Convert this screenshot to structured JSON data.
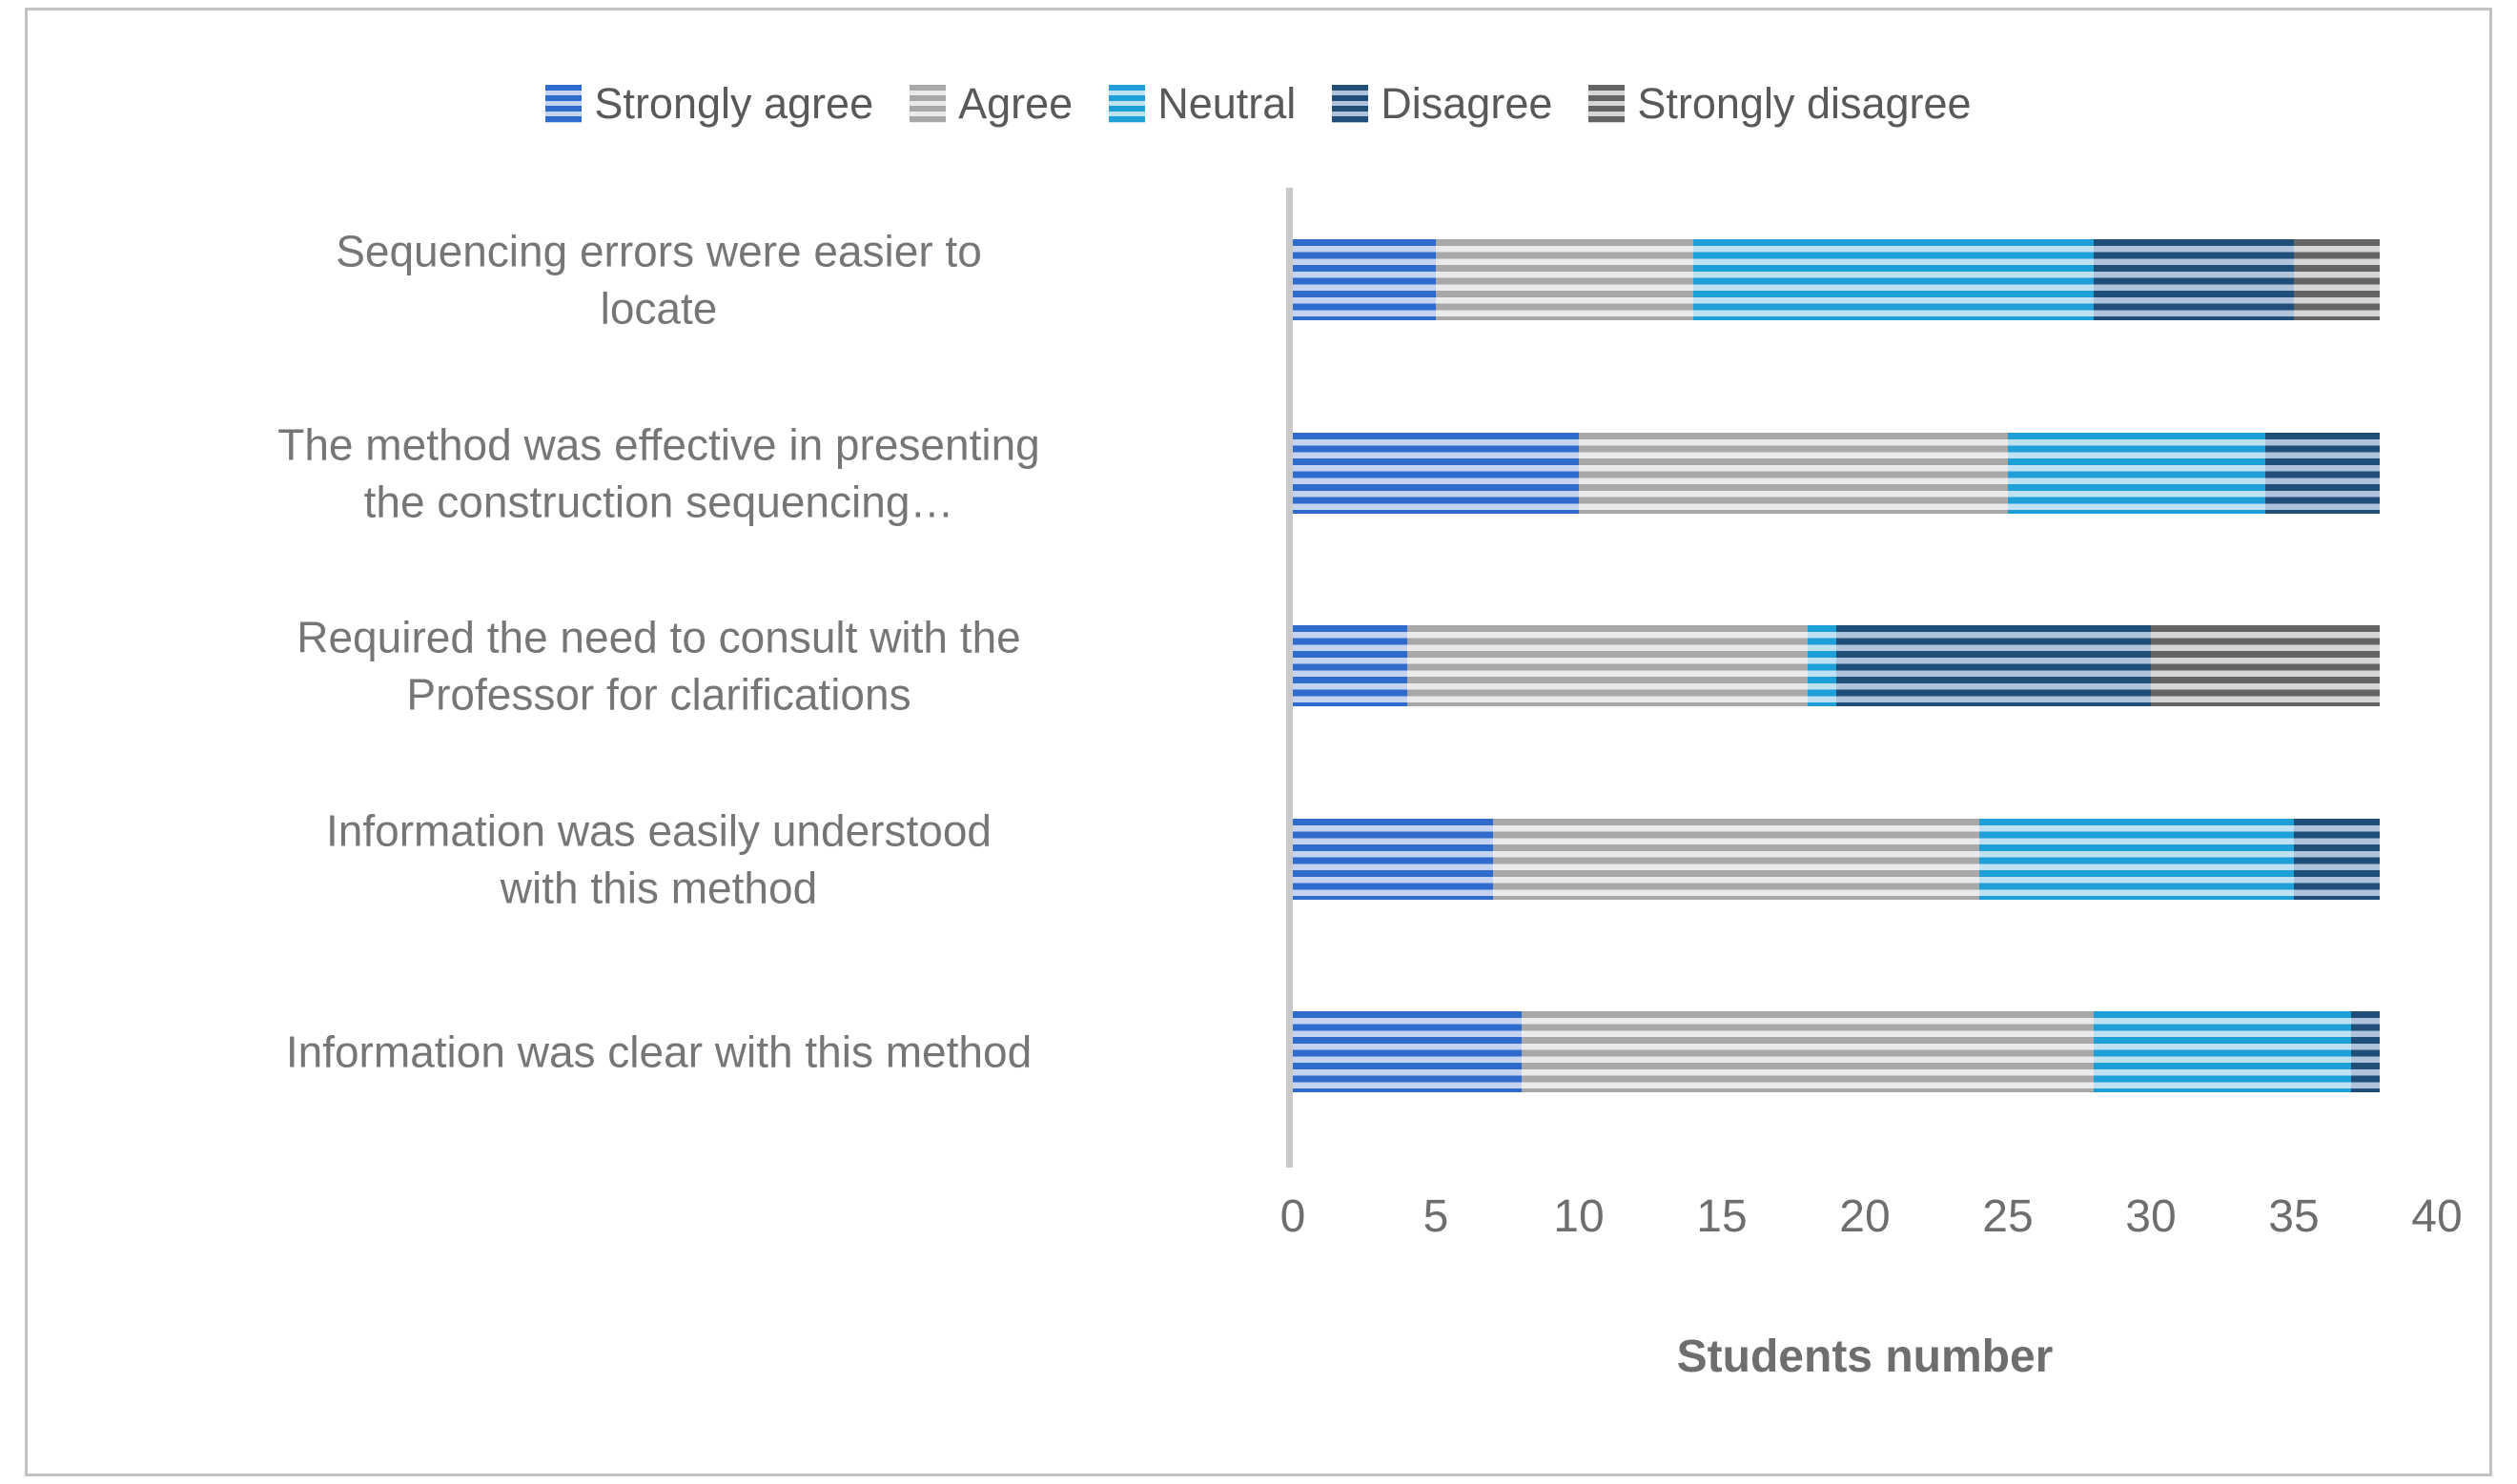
{
  "chart_data": {
    "type": "bar",
    "orientation": "horizontal-stacked",
    "title": "",
    "xlabel": "Students number",
    "xlim": [
      0,
      40
    ],
    "xticks": [
      0,
      5,
      10,
      15,
      20,
      25,
      30,
      35,
      40
    ],
    "grid": false,
    "legend_position": "top",
    "total_per_category": 38,
    "categories": [
      "Sequencing errors were easier to locate",
      "The method was effective in presenting the construction sequencing…",
      "Required the need to consult with the Professor for clarifications",
      "Information was easily understood with this method",
      "Information was clear with this method"
    ],
    "category_label_lines": [
      [
        "Sequencing errors were easier to",
        "locate"
      ],
      [
        "The method was effective in presenting",
        "the construction sequencing…"
      ],
      [
        "Required the need to consult with the",
        "Professor for clarifications"
      ],
      [
        "Information was easily understood",
        "with this method"
      ],
      [
        "Information was clear with this method"
      ]
    ],
    "series": [
      {
        "name": "Strongly agree",
        "color_dark": "#2E6BCC",
        "color_light": "#C4D4F0",
        "values": [
          5,
          10,
          4,
          7,
          8
        ]
      },
      {
        "name": "Agree",
        "color_dark": "#A8A8A8",
        "color_light": "#EAEAEA",
        "values": [
          9,
          15,
          14,
          17,
          20
        ]
      },
      {
        "name": "Neutral",
        "color_dark": "#1E9FD7",
        "color_light": "#BFE1F4",
        "values": [
          14,
          9,
          1,
          11,
          9
        ]
      },
      {
        "name": "Disagree",
        "color_dark": "#1F4E79",
        "color_light": "#AFC3DC",
        "values": [
          7,
          4,
          11,
          3,
          1
        ]
      },
      {
        "name": "Strongly disagree",
        "color_dark": "#646464",
        "color_light": "#D6D6D6",
        "values": [
          3,
          0,
          8,
          0,
          0
        ]
      }
    ],
    "frame_border_color": "#C3C3C3",
    "axis_line_color": "#C9C9C9"
  }
}
